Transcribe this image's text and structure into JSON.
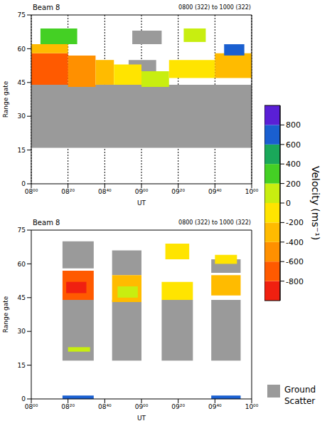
{
  "chart_data": {
    "type": "heatmap",
    "legend": "right",
    "panels": [
      {
        "title": "Beam 8",
        "subtitle": "0800 (322) to 1000 (322)",
        "x_label": "UT",
        "y_label": "Range gate",
        "xlim": [
          480,
          600
        ],
        "xticks": [
          {
            "value": 480,
            "label": "08⁰⁰"
          },
          {
            "value": 500,
            "label": "08²⁰"
          },
          {
            "value": 520,
            "label": "08⁴⁰"
          },
          {
            "value": 540,
            "label": "09⁰⁰"
          },
          {
            "value": 560,
            "label": "09²⁰"
          },
          {
            "value": 580,
            "label": "09⁴⁰"
          },
          {
            "value": 600,
            "label": "10⁰⁰"
          }
        ],
        "ylim": [
          0,
          75
        ],
        "yticks": [
          0,
          15,
          30,
          45,
          60,
          75
        ],
        "grid": true,
        "ground_scatter": [
          {
            "x": [
              480,
              600
            ],
            "gate": [
              16,
              44
            ]
          },
          {
            "x": [
              533,
              548
            ],
            "gate": [
              44,
              55
            ]
          },
          {
            "x": [
              535,
              551
            ],
            "gate": [
              62,
              68
            ]
          }
        ],
        "cells": [
          {
            "x": [
              480,
              500
            ],
            "gate": [
              44,
              58
            ],
            "velocity": -650
          },
          {
            "x": [
              484,
              500
            ],
            "gate": [
              47,
              53
            ],
            "velocity": -800
          },
          {
            "x": [
              480,
              500
            ],
            "gate": [
              58,
              62
            ],
            "velocity": -300
          },
          {
            "x": [
              485,
              505
            ],
            "gate": [
              62,
              69
            ],
            "velocity": 200
          },
          {
            "x": [
              500,
              515
            ],
            "gate": [
              43,
              57
            ],
            "velocity": -500
          },
          {
            "x": [
              515,
              525
            ],
            "gate": [
              44,
              55
            ],
            "velocity": -350
          },
          {
            "x": [
              525,
              540
            ],
            "gate": [
              44,
              53
            ],
            "velocity": -150
          },
          {
            "x": [
              540,
              555
            ],
            "gate": [
              43,
              50
            ],
            "velocity": 100
          },
          {
            "x": [
              555,
              580
            ],
            "gate": [
              47,
              55
            ],
            "velocity": -200
          },
          {
            "x": [
              563,
              575
            ],
            "gate": [
              63,
              69
            ],
            "velocity": 0
          },
          {
            "x": [
              580,
              600
            ],
            "gate": [
              47,
              58
            ],
            "velocity": -350
          },
          {
            "x": [
              585,
              596
            ],
            "gate": [
              57,
              62
            ],
            "velocity": 700
          }
        ]
      },
      {
        "title": "Beam 8",
        "subtitle": "0800 (322) to 1000 (322)",
        "x_label": "UT",
        "y_label": "Range gate",
        "xlim": [
          480,
          600
        ],
        "xticks": [
          {
            "value": 480,
            "label": "08⁰⁰"
          },
          {
            "value": 500,
            "label": "08²⁰"
          },
          {
            "value": 520,
            "label": "08⁴⁰"
          },
          {
            "value": 540,
            "label": "09⁰⁰"
          },
          {
            "value": 560,
            "label": "09²⁰"
          },
          {
            "value": 580,
            "label": "09⁴⁰"
          },
          {
            "value": 600,
            "label": "10⁰⁰"
          }
        ],
        "ylim": [
          0,
          75
        ],
        "yticks": [
          0,
          15,
          30,
          45,
          60,
          75
        ],
        "grid": false,
        "ground_scatter": [
          {
            "x": [
              497,
              514
            ],
            "gate": [
              17,
              44
            ]
          },
          {
            "x": [
              497,
              514
            ],
            "gate": [
              58,
              70
            ]
          },
          {
            "x": [
              524,
              540
            ],
            "gate": [
              17,
              44
            ]
          },
          {
            "x": [
              524,
              540
            ],
            "gate": [
              55,
              66
            ]
          },
          {
            "x": [
              551,
              568
            ],
            "gate": [
              17,
              44
            ]
          },
          {
            "x": [
              578,
              594
            ],
            "gate": [
              17,
              44
            ]
          },
          {
            "x": [
              578,
              594
            ],
            "gate": [
              56,
              62
            ]
          }
        ],
        "cells": [
          {
            "x": [
              497,
              514
            ],
            "gate": [
              44,
              57
            ],
            "velocity": -700
          },
          {
            "x": [
              499,
              510
            ],
            "gate": [
              47,
              52
            ],
            "velocity": -850
          },
          {
            "x": [
              500,
              512
            ],
            "gate": [
              21,
              23
            ],
            "velocity": 150
          },
          {
            "x": [
              497,
              514
            ],
            "gate": [
              0,
              1.5
            ],
            "velocity": 700
          },
          {
            "x": [
              524,
              540
            ],
            "gate": [
              43,
              55
            ],
            "velocity": -300
          },
          {
            "x": [
              527,
              538
            ],
            "gate": [
              45,
              50
            ],
            "velocity": 100
          },
          {
            "x": [
              551,
              568
            ],
            "gate": [
              44,
              52
            ],
            "velocity": -150
          },
          {
            "x": [
              553,
              566
            ],
            "gate": [
              62,
              69
            ],
            "velocity": -150
          },
          {
            "x": [
              578,
              594
            ],
            "gate": [
              46,
              55
            ],
            "velocity": -350
          },
          {
            "x": [
              580,
              592
            ],
            "gate": [
              60,
              64
            ],
            "velocity": -100
          },
          {
            "x": [
              578,
              594
            ],
            "gate": [
              0,
              1.5
            ],
            "velocity": 700
          }
        ]
      }
    ],
    "colorbar": {
      "title": "Velocity (ms⁻¹)",
      "range": [
        -1000,
        1000
      ],
      "ticks": [
        -800,
        -600,
        -400,
        -200,
        0,
        200,
        400,
        600,
        800
      ],
      "bounds": [
        -1000,
        -800,
        -600,
        -400,
        -200,
        0,
        200,
        400,
        600,
        800,
        1000
      ],
      "colors": [
        "#f02010",
        "#ff5a00",
        "#ff9000",
        "#ffbb00",
        "#ffe400",
        "#c8ee10",
        "#44d024",
        "#1aa85a",
        "#1a5fd0",
        "#5a1fd6"
      ]
    },
    "ground_scatter": {
      "label": "Ground Scatter",
      "color": "#9a9a9a"
    }
  }
}
